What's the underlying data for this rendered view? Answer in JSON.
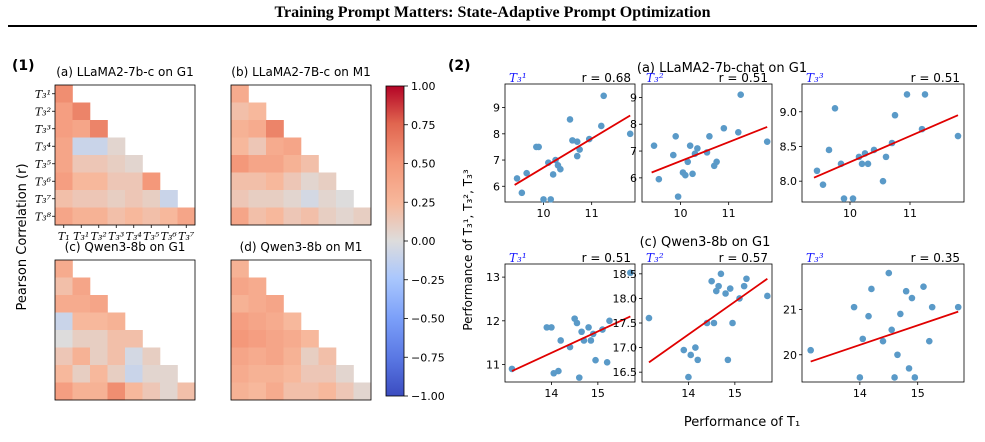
{
  "page_title": "Training Prompt Matters: State-Adaptive Prompt Optimization",
  "colors": {
    "regline": "#e00000",
    "point": "#5a9ac8"
  },
  "part1": {
    "label": "(1)",
    "ylabel": "Pearson Correlation (r)",
    "colorbar": {
      "min": -1.0,
      "max": 1.0,
      "ticks": [
        "1.00",
        "0.75",
        "0.50",
        "0.25",
        "0.00",
        "−0.25",
        "−0.50",
        "−0.75",
        "−1.00"
      ]
    },
    "row_labels": [
      "T₃¹",
      "T₃²",
      "T₃³",
      "T₃⁴",
      "T₃⁵",
      "T₃⁶",
      "T₃⁷",
      "T₃⁸"
    ],
    "col_labels": [
      "T₁",
      "T₃¹",
      "T₃²",
      "T₃³",
      "T₃⁴",
      "T₃⁵",
      "T₃⁶",
      "T₃⁷"
    ],
    "heatmaps": [
      {
        "title": "(a) LLaMA2-7b-c on G1",
        "values": [
          [
            0.55
          ],
          [
            0.45,
            0.6
          ],
          [
            0.45,
            0.4,
            0.6
          ],
          [
            0.4,
            -0.1,
            -0.1,
            0.05
          ],
          [
            0.4,
            0.15,
            0.15,
            0.1,
            0.05
          ],
          [
            0.45,
            0.25,
            0.25,
            0.15,
            0.15,
            0.5
          ],
          [
            0.2,
            0.15,
            0.15,
            0.1,
            0.15,
            0.1,
            -0.1
          ],
          [
            0.4,
            0.3,
            0.3,
            0.2,
            0.25,
            0.2,
            0.25,
            0.4
          ]
        ]
      },
      {
        "title": "(b) LLaMA2-7B-c on M1",
        "values": [
          [
            0.35
          ],
          [
            0.2,
            0.25
          ],
          [
            0.3,
            0.35,
            0.6
          ],
          [
            0.25,
            0.15,
            0.35,
            0.4
          ],
          [
            0.5,
            0.4,
            0.4,
            0.3,
            0.2
          ],
          [
            0.2,
            0.2,
            0.25,
            0.15,
            0.05,
            0.1
          ],
          [
            0.15,
            0.1,
            0.1,
            0.05,
            -0.05,
            0.05,
            0.0
          ],
          [
            0.4,
            0.2,
            0.25,
            0.15,
            0.2,
            0.1,
            0.05,
            0.1
          ]
        ]
      },
      {
        "title": "(c) Qwen3-8b on G1",
        "values": [
          [
            0.35
          ],
          [
            0.2,
            0.4
          ],
          [
            0.35,
            0.35,
            0.4
          ],
          [
            -0.1,
            0.25,
            0.25,
            0.3
          ],
          [
            0.0,
            0.1,
            0.1,
            0.2,
            0.2
          ],
          [
            0.15,
            0.3,
            0.1,
            0.2,
            -0.05,
            0.1
          ],
          [
            0.25,
            0.1,
            0.25,
            0.1,
            -0.1,
            0.05,
            0.05
          ],
          [
            0.45,
            0.3,
            0.3,
            0.55,
            0.25,
            0.15,
            0.05,
            0.2
          ]
        ]
      },
      {
        "title": "(d) Qwen3-8b on M1",
        "values": [
          [
            0.3
          ],
          [
            0.4,
            0.35
          ],
          [
            0.3,
            0.35,
            0.4
          ],
          [
            0.45,
            0.4,
            0.35,
            0.25
          ],
          [
            0.5,
            0.45,
            0.4,
            0.35,
            0.25
          ],
          [
            0.4,
            0.35,
            0.4,
            0.3,
            0.1,
            0.2
          ],
          [
            0.35,
            0.3,
            0.3,
            0.25,
            0.15,
            0.15,
            0.05
          ],
          [
            0.3,
            0.25,
            0.35,
            0.2,
            0.2,
            0.25,
            0.15,
            0.05
          ]
        ]
      }
    ]
  },
  "part2": {
    "label": "(2)",
    "row_titles": [
      "(a) LLaMA2-7b-chat on G1",
      "(c) Qwen3-8b on G1"
    ],
    "ylabel": "Performance of T₃¹, T₃², T₃³",
    "xlabel": "Performance of T₁",
    "chart_data": [
      {
        "type": "scatter",
        "tag": "T₃¹",
        "r_text": "r = 0.68",
        "xlim": [
          9.2,
          11.9
        ],
        "ylim": [
          5.4,
          9.9
        ],
        "xticks": [
          10,
          11
        ],
        "yticks": [
          6,
          7,
          8,
          9
        ],
        "x": [
          9.45,
          9.55,
          9.65,
          9.85,
          9.9,
          10.0,
          10.1,
          10.15,
          10.2,
          10.25,
          10.3,
          10.35,
          10.55,
          10.6,
          10.7,
          10.7,
          10.75,
          10.95,
          11.2,
          11.25,
          11.8
        ],
        "y": [
          6.3,
          5.75,
          6.5,
          7.5,
          7.5,
          5.5,
          6.9,
          5.5,
          6.45,
          7.0,
          6.8,
          6.65,
          8.55,
          7.75,
          7.7,
          7.15,
          7.4,
          7.8,
          8.3,
          9.45,
          8.0
        ],
        "fit": [
          [
            9.4,
            6.05
          ],
          [
            11.8,
            8.7
          ]
        ]
      },
      {
        "type": "scatter",
        "tag": "T₃²",
        "r_text": "r = 0.51",
        "xlim": [
          9.2,
          11.9
        ],
        "ylim": [
          5.1,
          9.5
        ],
        "xticks": [
          10,
          11
        ],
        "yticks": [
          6,
          7,
          8,
          9
        ],
        "x": [
          9.45,
          9.55,
          9.85,
          9.9,
          9.95,
          10.05,
          10.1,
          10.15,
          10.2,
          10.25,
          10.3,
          10.35,
          10.55,
          10.6,
          10.7,
          10.75,
          10.9,
          11.2,
          11.25,
          11.8
        ],
        "y": [
          7.2,
          5.95,
          6.85,
          7.55,
          5.3,
          6.2,
          6.1,
          6.6,
          7.2,
          6.15,
          6.9,
          7.1,
          6.95,
          7.55,
          6.45,
          6.6,
          7.85,
          7.7,
          9.1,
          7.35
        ],
        "fit": [
          [
            9.4,
            6.2
          ],
          [
            11.8,
            7.9
          ]
        ]
      },
      {
        "type": "scatter",
        "tag": "T₃³",
        "r_text": "r = 0.51",
        "xlim": [
          9.2,
          11.9
        ],
        "ylim": [
          7.7,
          9.4
        ],
        "xticks": [
          10,
          11
        ],
        "yticks": [
          8.0,
          8.5,
          9.0
        ],
        "x": [
          9.45,
          9.55,
          9.65,
          9.75,
          9.85,
          9.9,
          10.05,
          10.15,
          10.2,
          10.25,
          10.3,
          10.4,
          10.55,
          10.6,
          10.7,
          10.75,
          10.95,
          11.2,
          11.25,
          11.8
        ],
        "y": [
          8.15,
          7.95,
          8.45,
          9.05,
          8.25,
          7.75,
          7.75,
          8.35,
          8.25,
          8.4,
          8.25,
          8.45,
          8.0,
          8.35,
          8.55,
          8.95,
          9.25,
          8.75,
          9.25,
          8.65
        ],
        "fit": [
          [
            9.4,
            8.05
          ],
          [
            11.8,
            8.95
          ]
        ]
      },
      {
        "type": "scatter",
        "tag": "T₃¹",
        "r_text": "r = 0.51",
        "xlim": [
          13.0,
          15.8
        ],
        "ylim": [
          10.6,
          13.3
        ],
        "xticks": [
          14,
          15
        ],
        "yticks": [
          11,
          12,
          13
        ],
        "x": [
          13.15,
          13.9,
          14.0,
          14.05,
          14.15,
          14.2,
          14.4,
          14.5,
          14.55,
          14.6,
          14.65,
          14.7,
          14.8,
          14.85,
          14.9,
          14.95,
          15.1,
          15.2,
          15.25,
          15.7
        ],
        "y": [
          10.9,
          11.85,
          11.85,
          10.8,
          10.85,
          11.55,
          11.4,
          12.05,
          11.95,
          10.7,
          11.75,
          11.55,
          11.85,
          11.55,
          11.7,
          11.1,
          11.8,
          11.05,
          12.0,
          13.1
        ],
        "fit": [
          [
            13.15,
            10.85
          ],
          [
            15.7,
            12.1
          ]
        ]
      },
      {
        "type": "scatter",
        "tag": "T₃²",
        "r_text": "r = 0.57",
        "xlim": [
          13.0,
          15.8
        ],
        "ylim": [
          16.3,
          18.7
        ],
        "xticks": [
          14,
          15
        ],
        "yticks": [
          16.5,
          17.0,
          17.5,
          18.0,
          18.5
        ],
        "x": [
          13.15,
          13.9,
          14.0,
          14.05,
          14.15,
          14.2,
          14.4,
          14.5,
          14.55,
          14.6,
          14.65,
          14.7,
          14.8,
          14.85,
          14.9,
          14.95,
          15.1,
          15.2,
          15.25,
          15.7
        ],
        "y": [
          17.6,
          16.95,
          16.4,
          16.85,
          17.0,
          16.75,
          17.5,
          18.35,
          17.5,
          18.15,
          18.25,
          18.5,
          18.1,
          16.75,
          18.2,
          17.5,
          18.0,
          18.25,
          18.4,
          18.05
        ],
        "fit": [
          [
            13.15,
            16.7
          ],
          [
            15.7,
            18.4
          ]
        ]
      },
      {
        "type": "scatter",
        "tag": "T₃³",
        "r_text": "r = 0.35",
        "xlim": [
          13.0,
          15.8
        ],
        "ylim": [
          19.4,
          22.0
        ],
        "xticks": [
          14,
          15
        ],
        "yticks": [
          20,
          21
        ],
        "x": [
          13.15,
          13.9,
          14.0,
          14.05,
          14.15,
          14.2,
          14.4,
          14.5,
          14.55,
          14.6,
          14.65,
          14.7,
          14.8,
          14.85,
          14.9,
          14.95,
          15.1,
          15.2,
          15.25,
          15.7
        ],
        "y": [
          20.1,
          21.05,
          19.5,
          20.35,
          20.85,
          21.45,
          20.3,
          21.8,
          20.55,
          19.5,
          20.0,
          20.9,
          21.4,
          19.7,
          21.25,
          19.5,
          21.5,
          20.3,
          21.05,
          21.05
        ],
        "fit": [
          [
            13.15,
            19.85
          ],
          [
            15.7,
            20.95
          ]
        ]
      }
    ]
  }
}
